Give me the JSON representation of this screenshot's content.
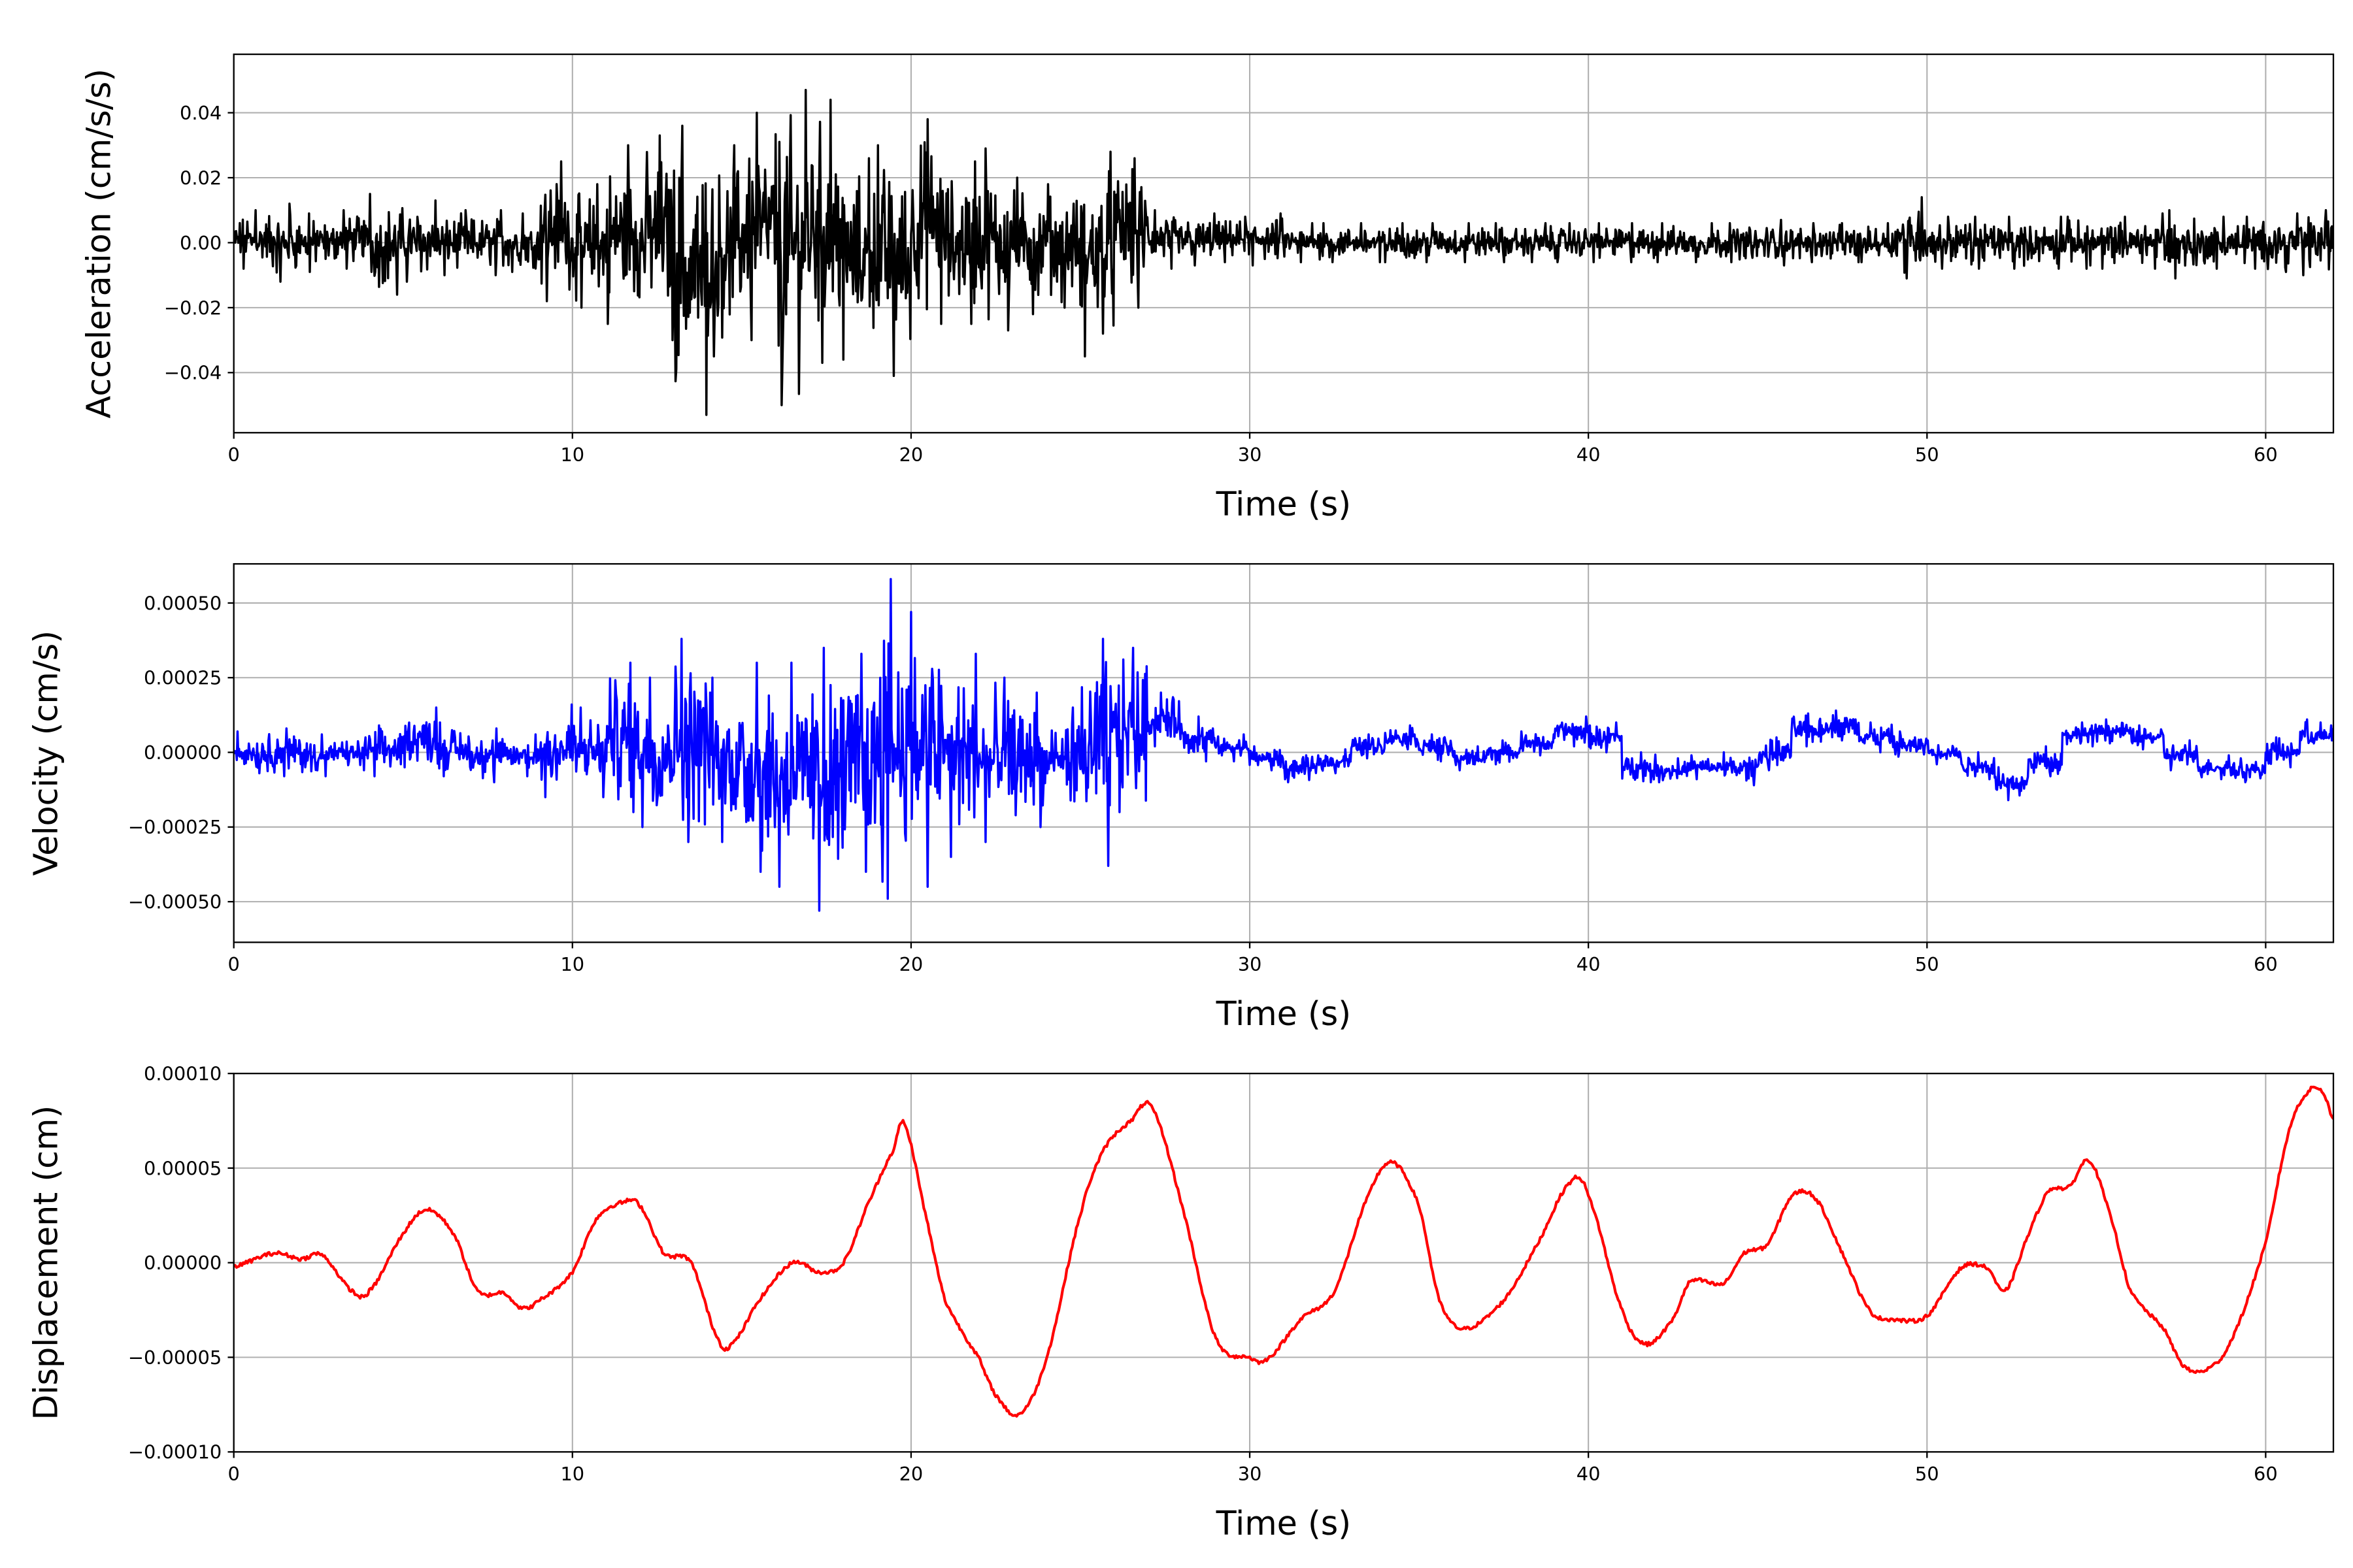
{
  "chart_data": [
    {
      "type": "line",
      "xlabel": "Time (s)",
      "ylabel": "Acceleration (cm/s/s)",
      "xlim": [
        0,
        62
      ],
      "ylim": [
        -0.0585,
        0.058
      ],
      "xticks": [
        0,
        10,
        20,
        30,
        40,
        50,
        60
      ],
      "yticks": [
        -0.04,
        -0.02,
        0.0,
        0.02,
        0.04
      ],
      "ytick_labels": [
        "−0.04",
        "−0.02",
        "0.00",
        "0.02",
        "0.04"
      ],
      "grid": true,
      "color": "#000000",
      "per_second_envelope": {
        "t_start": [
          0,
          1,
          2,
          3,
          4,
          5,
          6,
          7,
          8,
          9,
          10,
          11,
          12,
          13,
          14,
          15,
          16,
          17,
          18,
          19,
          20,
          21,
          22,
          23,
          24,
          25,
          26,
          27,
          28,
          29,
          30,
          31,
          32,
          33,
          34,
          35,
          36,
          37,
          38,
          39,
          40,
          41,
          42,
          43,
          44,
          45,
          46,
          47,
          48,
          49,
          50,
          51,
          52,
          53,
          54,
          55,
          56,
          57,
          58,
          59,
          60,
          61
        ],
        "max": [
          0.01,
          0.012,
          0.009,
          0.01,
          0.015,
          0.013,
          0.01,
          0.01,
          0.009,
          0.025,
          0.018,
          0.03,
          0.033,
          0.036,
          0.03,
          0.04,
          0.047,
          0.044,
          0.026,
          0.03,
          0.038,
          0.025,
          0.029,
          0.02,
          0.018,
          0.028,
          0.026,
          0.01,
          0.009,
          0.008,
          0.009,
          0.006,
          0.006,
          0.006,
          0.006,
          0.006,
          0.006,
          0.006,
          0.006,
          0.006,
          0.006,
          0.006,
          0.006,
          0.006,
          0.006,
          0.007,
          0.006,
          0.006,
          0.006,
          0.014,
          0.008,
          0.008,
          0.008,
          0.008,
          0.008,
          0.008,
          0.009,
          0.01,
          0.008,
          0.008,
          0.009,
          0.01
        ],
        "min": [
          -0.008,
          -0.012,
          -0.009,
          -0.008,
          -0.016,
          -0.012,
          -0.01,
          -0.01,
          -0.009,
          -0.018,
          -0.02,
          -0.025,
          -0.03,
          -0.053,
          -0.035,
          -0.03,
          -0.05,
          -0.037,
          -0.036,
          -0.041,
          -0.025,
          -0.025,
          -0.027,
          -0.022,
          -0.02,
          -0.035,
          -0.02,
          -0.008,
          -0.007,
          -0.006,
          -0.007,
          -0.006,
          -0.006,
          -0.006,
          -0.006,
          -0.006,
          -0.006,
          -0.006,
          -0.006,
          -0.006,
          -0.006,
          -0.006,
          -0.006,
          -0.006,
          -0.006,
          -0.007,
          -0.006,
          -0.006,
          -0.006,
          -0.011,
          -0.008,
          -0.008,
          -0.008,
          -0.008,
          -0.008,
          -0.008,
          -0.008,
          -0.011,
          -0.008,
          -0.008,
          -0.009,
          -0.01
        ]
      }
    },
    {
      "type": "line",
      "xlabel": "Time (s)",
      "ylabel": "Velocity (cm/s)",
      "xlim": [
        0,
        62
      ],
      "ylim": [
        -0.000636,
        0.000631
      ],
      "xticks": [
        0,
        10,
        20,
        30,
        40,
        50,
        60
      ],
      "yticks": [
        -0.0005,
        -0.00025,
        0.0,
        0.00025,
        0.0005
      ],
      "ytick_labels": [
        "−0.00050",
        "−0.00025",
        "0.00000",
        "0.00025",
        "0.00050"
      ],
      "grid": true,
      "color": "#0000ff",
      "per_second_envelope": {
        "t_start": [
          0,
          1,
          2,
          3,
          4,
          5,
          6,
          7,
          8,
          9,
          10,
          11,
          12,
          13,
          14,
          15,
          16,
          17,
          18,
          19,
          20,
          21,
          22,
          23,
          24,
          25,
          26,
          27,
          28,
          29,
          30,
          31,
          32,
          33,
          34,
          35,
          36,
          37,
          38,
          39,
          40,
          41,
          42,
          43,
          44,
          45,
          46,
          47,
          48,
          49,
          50,
          51,
          52,
          53,
          54,
          55,
          56,
          57,
          58,
          59,
          60,
          61
        ],
        "max": [
          7e-05,
          8e-05,
          6e-05,
          5e-05,
          9e-05,
          0.00015,
          0.0001,
          8e-05,
          6e-05,
          0.00016,
          0.00015,
          0.0003,
          0.00025,
          0.00038,
          0.00025,
          0.0003,
          0.0003,
          0.00035,
          0.00033,
          0.00058,
          0.00047,
          0.00033,
          0.00025,
          0.0002,
          0.00015,
          0.00038,
          0.00035,
          0.0002,
          0.00012,
          6e-05,
          2e-05,
          -1e-05,
          1e-05,
          6e-05,
          9e-05,
          6e-05,
          2e-05,
          4e-05,
          7e-05,
          0.00012,
          0.0001,
          0.0,
          -2e-05,
          -1e-05,
          0.0,
          5e-05,
          0.00013,
          0.00014,
          0.0001,
          7e-05,
          4e-05,
          0.0,
          -5e-05,
          2e-05,
          0.0001,
          0.00011,
          9e-05,
          4e-05,
          -1e-05,
          -2e-05,
          5e-05,
          0.00011
        ],
        "min": [
          -7e-05,
          -8e-05,
          -8e-05,
          -6e-05,
          -8e-05,
          -5e-05,
          -8e-05,
          -0.0001,
          -8e-05,
          -0.00015,
          -0.00015,
          -0.0002,
          -0.00025,
          -0.0003,
          -0.0003,
          -0.0004,
          -0.00045,
          -0.00053,
          -0.0004,
          -0.00049,
          -0.00045,
          -0.00035,
          -0.0003,
          -0.00025,
          -0.0002,
          -0.00038,
          -0.0002,
          2e-05,
          -3e-05,
          -3e-05,
          -6e-05,
          -0.0001,
          -7e-05,
          -2e-05,
          1e-05,
          -3e-05,
          -6e-05,
          -4e-05,
          -1e-05,
          2e-05,
          0.0,
          -0.0001,
          -0.0001,
          -9e-05,
          -0.00011,
          -6e-05,
          2e-05,
          4e-05,
          0.0,
          -3e-05,
          -4e-05,
          -9e-05,
          -0.00016,
          -8e-05,
          2e-05,
          3e-05,
          1e-05,
          -6e-05,
          -9e-05,
          -0.0001,
          -5e-05,
          0.0
        ]
      }
    },
    {
      "type": "line",
      "xlabel": "Time (s)",
      "ylabel": "Displacement (cm)",
      "xlim": [
        0,
        62
      ],
      "ylim": [
        -0.0001,
        0.0001
      ],
      "xticks": [
        0,
        10,
        20,
        30,
        40,
        50,
        60
      ],
      "yticks": [
        -0.0001,
        -5e-05,
        0.0,
        5e-05,
        0.0001
      ],
      "ytick_labels": [
        "−0.00010",
        "−0.00005",
        "0.00000",
        "0.00005",
        "0.00010"
      ],
      "grid": true,
      "color": "#ff0000",
      "points_t": [
        0,
        1.2,
        2,
        2.6,
        3.5,
        4,
        5,
        5.7,
        6.5,
        7.2,
        8,
        8.5,
        9,
        10,
        10.7,
        11.5,
        12,
        12.7,
        13.5,
        14.3,
        14.7,
        15.5,
        16.5,
        17.3,
        18,
        18.7,
        19.5,
        19.8,
        20.5,
        21,
        22,
        22.5,
        23.2,
        24,
        25,
        25.7,
        26.5,
        27.1,
        28,
        29,
        30,
        30.5,
        31.5,
        32.5,
        33.5,
        34.2,
        35,
        35.6,
        36.3,
        37.5,
        38.5,
        39.5,
        40,
        41,
        41.7,
        42.5,
        43,
        44,
        44.6,
        45.3,
        46,
        46.7,
        47.5,
        48.3,
        49,
        50,
        51,
        51.8,
        52.3,
        53,
        53.6,
        54.2,
        54.8,
        55.5,
        56,
        57,
        57.6,
        58.3,
        59,
        60,
        60.7,
        61.3,
        61.7,
        62
      ],
      "points_y": [
        -2e-06,
        5e-06,
        2e-06,
        4e-06,
        -1.5e-05,
        -1.5e-05,
        1.5e-05,
        2.8e-05,
        1.5e-05,
        -1.5e-05,
        -1.6e-05,
        -2.4e-05,
        -2e-05,
        -5e-06,
        2.3e-05,
        3.2e-05,
        3e-05,
        5e-06,
        0,
        -4e-05,
        -4.3e-05,
        -2e-05,
        0,
        -5e-06,
        0,
        3e-05,
        6e-05,
        7.3e-05,
        2e-05,
        -2e-05,
        -5e-05,
        -7e-05,
        -8e-05,
        -5e-05,
        2.5e-05,
        6e-05,
        7.5e-05,
        8.2e-05,
        3e-05,
        -4e-05,
        -5e-05,
        -5.1e-05,
        -3e-05,
        -1.5e-05,
        3.5e-05,
        5.3e-05,
        3e-05,
        -2e-05,
        -3.5e-05,
        -2e-05,
        1e-05,
        4.3e-05,
        3.5e-05,
        -2.5e-05,
        -4.3e-05,
        -3e-05,
        -1e-05,
        -1.1e-05,
        5e-06,
        1e-05,
        3.5e-05,
        3.4e-05,
        5e-06,
        -2.5e-05,
        -3e-05,
        -2.8e-05,
        -3e-06,
        -3e-06,
        -1.5e-05,
        1.5e-05,
        3.8e-05,
        4e-05,
        5.4e-05,
        2e-05,
        -1.5e-05,
        -3.5e-05,
        -5.5e-05,
        -5.6e-05,
        -4e-05,
        1e-05,
        7e-05,
        9.1e-05,
        9e-05,
        7.6e-05
      ]
    }
  ]
}
